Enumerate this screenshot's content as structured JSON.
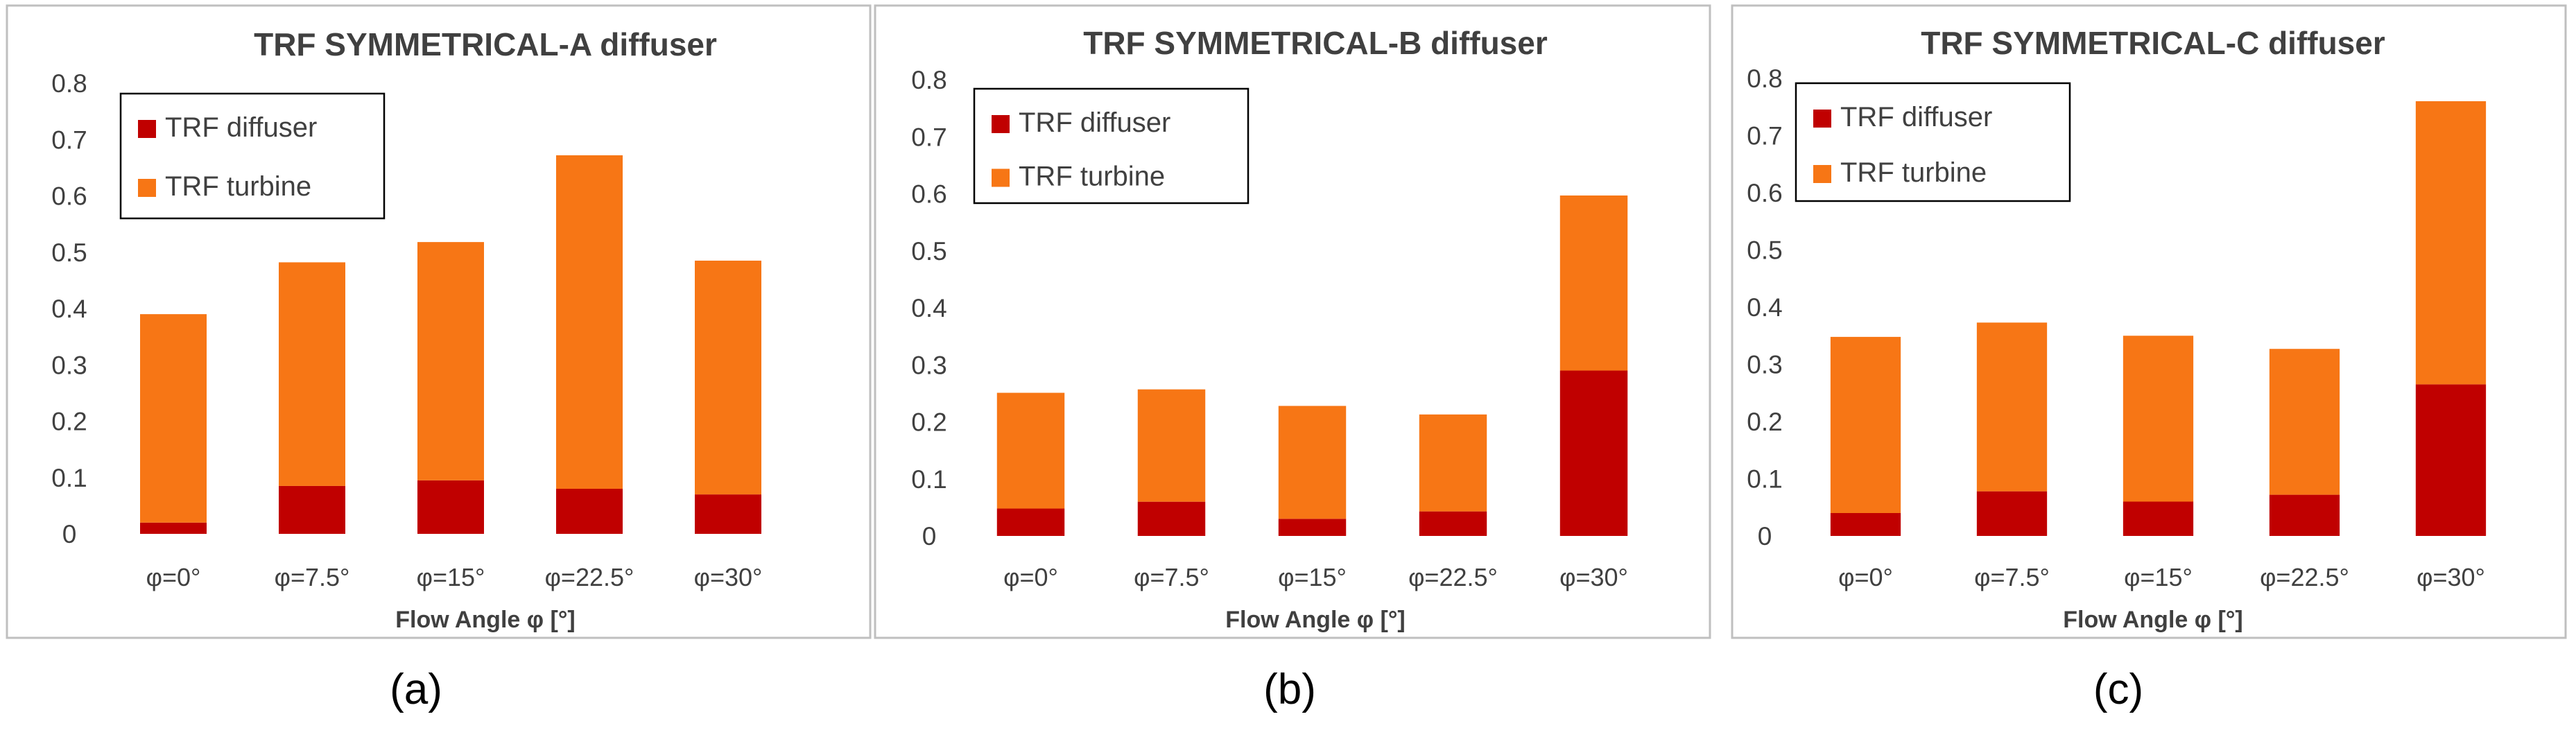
{
  "figure": {
    "panel_labels": [
      "(a)",
      "(b)",
      "(c)"
    ]
  },
  "colors": {
    "diffuser": "#C00000",
    "turbine": "#F77615",
    "frame": "#BFBFBF",
    "text": "#404040"
  },
  "chart_data": [
    {
      "type": "bar",
      "stacked": true,
      "title": "TRF SYMMETRICAL-A diffuser",
      "xlabel": "Flow Angle φ [°]",
      "ylabel": "",
      "categories": [
        "φ=0°",
        "φ=7.5°",
        "φ=15°",
        "φ=22.5°",
        "φ=30°"
      ],
      "ylim": [
        0,
        0.8
      ],
      "yticks": [
        "0",
        "0.1",
        "0.2",
        "0.3",
        "0.4",
        "0.5",
        "0.6",
        "0.7",
        "0.8"
      ],
      "grid": false,
      "legend_position": "top-left",
      "series": [
        {
          "name": "TRF diffuser",
          "values": [
            0.02,
            0.085,
            0.095,
            0.08,
            0.07
          ]
        },
        {
          "name": "TRF turbine",
          "values": [
            0.37,
            0.397,
            0.423,
            0.592,
            0.415
          ]
        }
      ]
    },
    {
      "type": "bar",
      "stacked": true,
      "title": "TRF SYMMETRICAL-B diffuser",
      "xlabel": "Flow Angle φ [°]",
      "ylabel": "",
      "categories": [
        "φ=0°",
        "φ=7.5°",
        "φ=15°",
        "φ=22.5°",
        "φ=30°"
      ],
      "ylim": [
        0,
        0.8
      ],
      "yticks": [
        "0",
        "0.1",
        "0.2",
        "0.3",
        "0.4",
        "0.5",
        "0.6",
        "0.7",
        "0.8"
      ],
      "grid": false,
      "legend_position": "top-left",
      "series": [
        {
          "name": "TRF diffuser",
          "values": [
            0.048,
            0.06,
            0.03,
            0.043,
            0.29
          ]
        },
        {
          "name": "TRF turbine",
          "values": [
            0.203,
            0.197,
            0.198,
            0.17,
            0.307
          ]
        }
      ]
    },
    {
      "type": "bar",
      "stacked": true,
      "title": "TRF SYMMETRICAL-C diffuser",
      "xlabel": "Flow Angle φ [°]",
      "ylabel": "",
      "categories": [
        "φ=0°",
        "φ=7.5°",
        "φ=15°",
        "φ=22.5°",
        "φ=30°"
      ],
      "ylim": [
        0,
        0.8
      ],
      "yticks": [
        "0",
        "0.1",
        "0.2",
        "0.3",
        "0.4",
        "0.5",
        "0.6",
        "0.7",
        "0.8"
      ],
      "grid": false,
      "legend_position": "top-left",
      "series": [
        {
          "name": "TRF diffuser",
          "values": [
            0.04,
            0.078,
            0.06,
            0.072,
            0.265
          ]
        },
        {
          "name": "TRF turbine",
          "values": [
            0.308,
            0.295,
            0.29,
            0.255,
            0.495
          ]
        }
      ]
    }
  ]
}
